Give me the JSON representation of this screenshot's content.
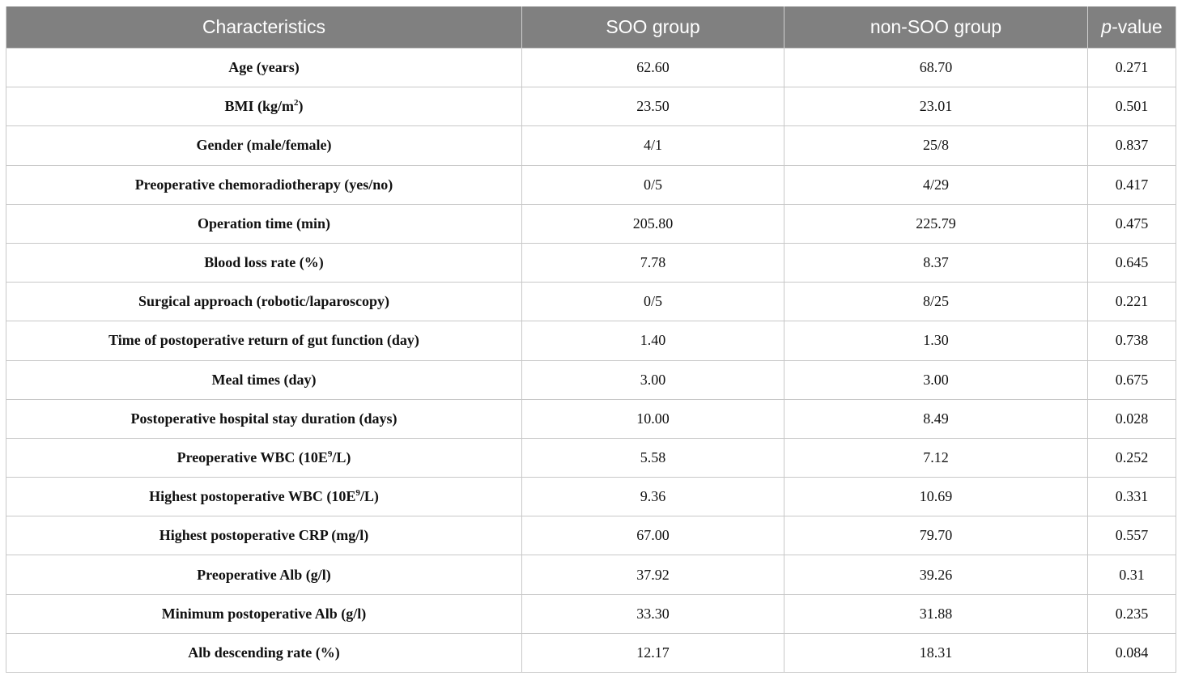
{
  "table": {
    "headers": {
      "characteristics": "Characteristics",
      "soo": "SOO group",
      "non_soo": "non-SOO group",
      "p_italic": "p",
      "p_rest": "-value"
    },
    "rows": [
      {
        "label": "Age (years)",
        "label_sup": "",
        "label_after": "",
        "soo": "62.60",
        "non_soo": "68.70",
        "p": "0.271"
      },
      {
        "label": "BMI (kg/m",
        "label_sup": "2",
        "label_after": ")",
        "soo": "23.50",
        "non_soo": "23.01",
        "p": "0.501"
      },
      {
        "label": "Gender (male/female)",
        "label_sup": "",
        "label_after": "",
        "soo": "4/1",
        "non_soo": "25/8",
        "p": "0.837"
      },
      {
        "label": "Preoperative chemoradiotherapy (yes/no)",
        "label_sup": "",
        "label_after": "",
        "soo": "0/5",
        "non_soo": "4/29",
        "p": "0.417"
      },
      {
        "label": "Operation time (min)",
        "label_sup": "",
        "label_after": "",
        "soo": "205.80",
        "non_soo": "225.79",
        "p": "0.475"
      },
      {
        "label": "Blood loss rate (%)",
        "label_sup": "",
        "label_after": "",
        "soo": "7.78",
        "non_soo": "8.37",
        "p": "0.645"
      },
      {
        "label": "Surgical approach (robotic/laparoscopy)",
        "label_sup": "",
        "label_after": "",
        "soo": "0/5",
        "non_soo": "8/25",
        "p": "0.221"
      },
      {
        "label": "Time of postoperative return of gut function (day)",
        "label_sup": "",
        "label_after": "",
        "soo": "1.40",
        "non_soo": "1.30",
        "p": "0.738"
      },
      {
        "label": "Meal times (day)",
        "label_sup": "",
        "label_after": "",
        "soo": "3.00",
        "non_soo": "3.00",
        "p": "0.675"
      },
      {
        "label": "Postoperative hospital stay duration (days)",
        "label_sup": "",
        "label_after": "",
        "soo": "10.00",
        "non_soo": "8.49",
        "p": "0.028"
      },
      {
        "label": "Preoperative WBC (10E",
        "label_sup": "9",
        "label_after": "/L)",
        "soo": "5.58",
        "non_soo": "7.12",
        "p": "0.252"
      },
      {
        "label": "Highest postoperative WBC (10E",
        "label_sup": "9",
        "label_after": "/L)",
        "soo": "9.36",
        "non_soo": "10.69",
        "p": "0.331"
      },
      {
        "label": "Highest postoperative CRP (mg/l)",
        "label_sup": "",
        "label_after": "",
        "soo": "67.00",
        "non_soo": "79.70",
        "p": "0.557"
      },
      {
        "label": "Preoperative Alb (g/l)",
        "label_sup": "",
        "label_after": "",
        "soo": "37.92",
        "non_soo": "39.26",
        "p": "0.31"
      },
      {
        "label": "Minimum postoperative Alb (g/l)",
        "label_sup": "",
        "label_after": "",
        "soo": "33.30",
        "non_soo": "31.88",
        "p": "0.235"
      },
      {
        "label": "Alb descending rate (%)",
        "label_sup": "",
        "label_after": "",
        "soo": "12.17",
        "non_soo": "18.31",
        "p": "0.084"
      }
    ]
  }
}
